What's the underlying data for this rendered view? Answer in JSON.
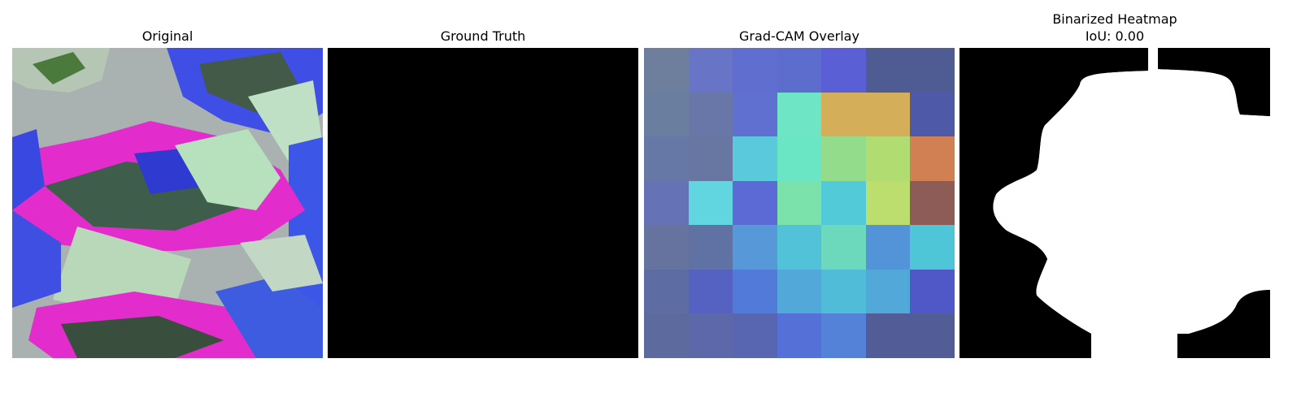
{
  "panels": {
    "original": {
      "title": "Original"
    },
    "ground_truth": {
      "title": "Ground Truth"
    },
    "gradcam": {
      "title": "Grad-CAM Overlay",
      "grid_colors": [
        [
          "#6e7f9d",
          "#6875c6",
          "#606fcf",
          "#5c6dcd",
          "#5a5fd6",
          "#4f5c94",
          "#4f5c94"
        ],
        [
          "#6a7e9f",
          "#6877a7",
          "#6070d0",
          "#6ee6c6",
          "#d4ae58",
          "#d4ae58",
          "#4e5aa8"
        ],
        [
          "#6678a6",
          "#6876a2",
          "#5ac9dc",
          "#6ae6c4",
          "#92dc8c",
          "#b0dc72",
          "#d08052"
        ],
        [
          "#6672b6",
          "#62d6e0",
          "#5c6ad6",
          "#7ae2aa",
          "#52cad8",
          "#bcde6e",
          "#8e5c56"
        ],
        [
          "#66739f",
          "#6071a4",
          "#5698d8",
          "#52c2d8",
          "#6cd8bc",
          "#5394d8",
          "#4fc6d8"
        ],
        [
          "#5d6ca2",
          "#5562c2",
          "#527ad8",
          "#52a8d8",
          "#50bcd8",
          "#52a8d8",
          "#5058c8"
        ],
        [
          "#5c6a9e",
          "#5c68aa",
          "#5866b2",
          "#5570d6",
          "#5482d8",
          "#525c96",
          "#525c96"
        ]
      ]
    },
    "binarized": {
      "title": "Binarized Heatmap",
      "iou_text": "IoU: 0.00"
    }
  }
}
